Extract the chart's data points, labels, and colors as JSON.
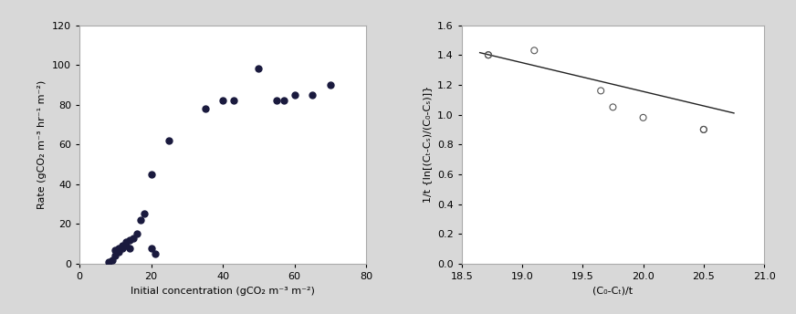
{
  "plot1": {
    "x": [
      8,
      9,
      10,
      10,
      11,
      11,
      12,
      12,
      13,
      13,
      14,
      14,
      15,
      16,
      17,
      18,
      20,
      20,
      21,
      25,
      35,
      40,
      43,
      50,
      55,
      57,
      60,
      65,
      70
    ],
    "y": [
      1,
      2,
      4,
      7,
      6,
      8,
      9,
      8,
      9,
      11,
      12,
      8,
      13,
      15,
      22,
      25,
      45,
      8,
      5,
      62,
      78,
      82,
      82,
      98,
      82,
      82,
      85,
      85,
      90
    ],
    "xlabel": "Initial concentration (gCO₂ m⁻³ m⁻²)",
    "ylabel": "Rate (gCO₂ m⁻³ hr⁻¹ m⁻²)",
    "xlim": [
      0,
      80
    ],
    "ylim": [
      0,
      120
    ],
    "xticks": [
      0,
      20,
      40,
      60,
      80
    ],
    "yticks": [
      0,
      20,
      40,
      60,
      80,
      100,
      120
    ],
    "marker_color": "#1a1a3e",
    "marker_size": 5
  },
  "plot2": {
    "x": [
      18.72,
      18.72,
      19.1,
      19.65,
      19.75,
      20.0,
      20.5,
      20.5
    ],
    "y": [
      1.4,
      1.4,
      1.43,
      1.16,
      1.05,
      0.98,
      0.9,
      0.9
    ],
    "line_x": [
      18.65,
      20.75
    ],
    "line_slope": -0.193,
    "line_intercept": 5.015,
    "xlabel": "(C₀-Cₜ)/t",
    "ylabel": "1/t {ln[(Cₜ-Cₛ)/(C₀-Cₛ)]}",
    "xlim": [
      18.5,
      21
    ],
    "ylim": [
      0,
      1.6
    ],
    "xticks": [
      18.5,
      19,
      19.5,
      20,
      20.5,
      21
    ],
    "yticks": [
      0,
      0.2,
      0.4,
      0.6,
      0.8,
      1.0,
      1.2,
      1.4,
      1.6
    ],
    "marker_edgecolor": "#555555",
    "marker_size": 5,
    "line_color": "#222222"
  },
  "figure": {
    "bg_color": "#d8d8d8",
    "plot_bg": "#ffffff",
    "spine_color": "#aaaaaa"
  }
}
